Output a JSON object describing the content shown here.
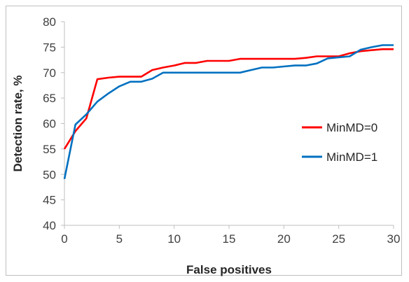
{
  "chart_data": {
    "type": "line",
    "xlabel": "False positives",
    "ylabel": "Detection rate, %",
    "xlim": [
      0,
      30
    ],
    "ylim": [
      40,
      80
    ],
    "xticks": [
      "0",
      "5",
      "10",
      "15",
      "20",
      "25",
      "30"
    ],
    "yticks": [
      "40",
      "45",
      "50",
      "55",
      "60",
      "65",
      "70",
      "75",
      "80"
    ],
    "grid": false,
    "legend_position": "right",
    "x": [
      0,
      1,
      2,
      3,
      4,
      5,
      6,
      7,
      8,
      9,
      10,
      11,
      12,
      13,
      14,
      15,
      16,
      17,
      18,
      19,
      20,
      21,
      22,
      23,
      24,
      25,
      26,
      27,
      28,
      29,
      30
    ],
    "series": [
      {
        "name": "MinMD=0",
        "color": "#ff0000",
        "values": [
          55.0,
          58.5,
          61.0,
          68.7,
          69.0,
          69.2,
          69.2,
          69.2,
          70.5,
          71.0,
          71.4,
          71.9,
          71.9,
          72.3,
          72.3,
          72.3,
          72.7,
          72.7,
          72.7,
          72.7,
          72.7,
          72.7,
          72.9,
          73.2,
          73.2,
          73.2,
          73.8,
          74.2,
          74.4,
          74.6,
          74.6
        ]
      },
      {
        "name": "MinMD=1",
        "color": "#0070c0",
        "values": [
          49.1,
          59.8,
          61.8,
          64.3,
          65.9,
          67.3,
          68.2,
          68.2,
          68.8,
          70.0,
          70.0,
          70.0,
          70.0,
          70.0,
          70.0,
          70.0,
          70.0,
          70.5,
          71.0,
          71.0,
          71.2,
          71.4,
          71.4,
          71.8,
          72.8,
          73.0,
          73.2,
          74.5,
          75.0,
          75.4,
          75.4
        ]
      }
    ]
  }
}
